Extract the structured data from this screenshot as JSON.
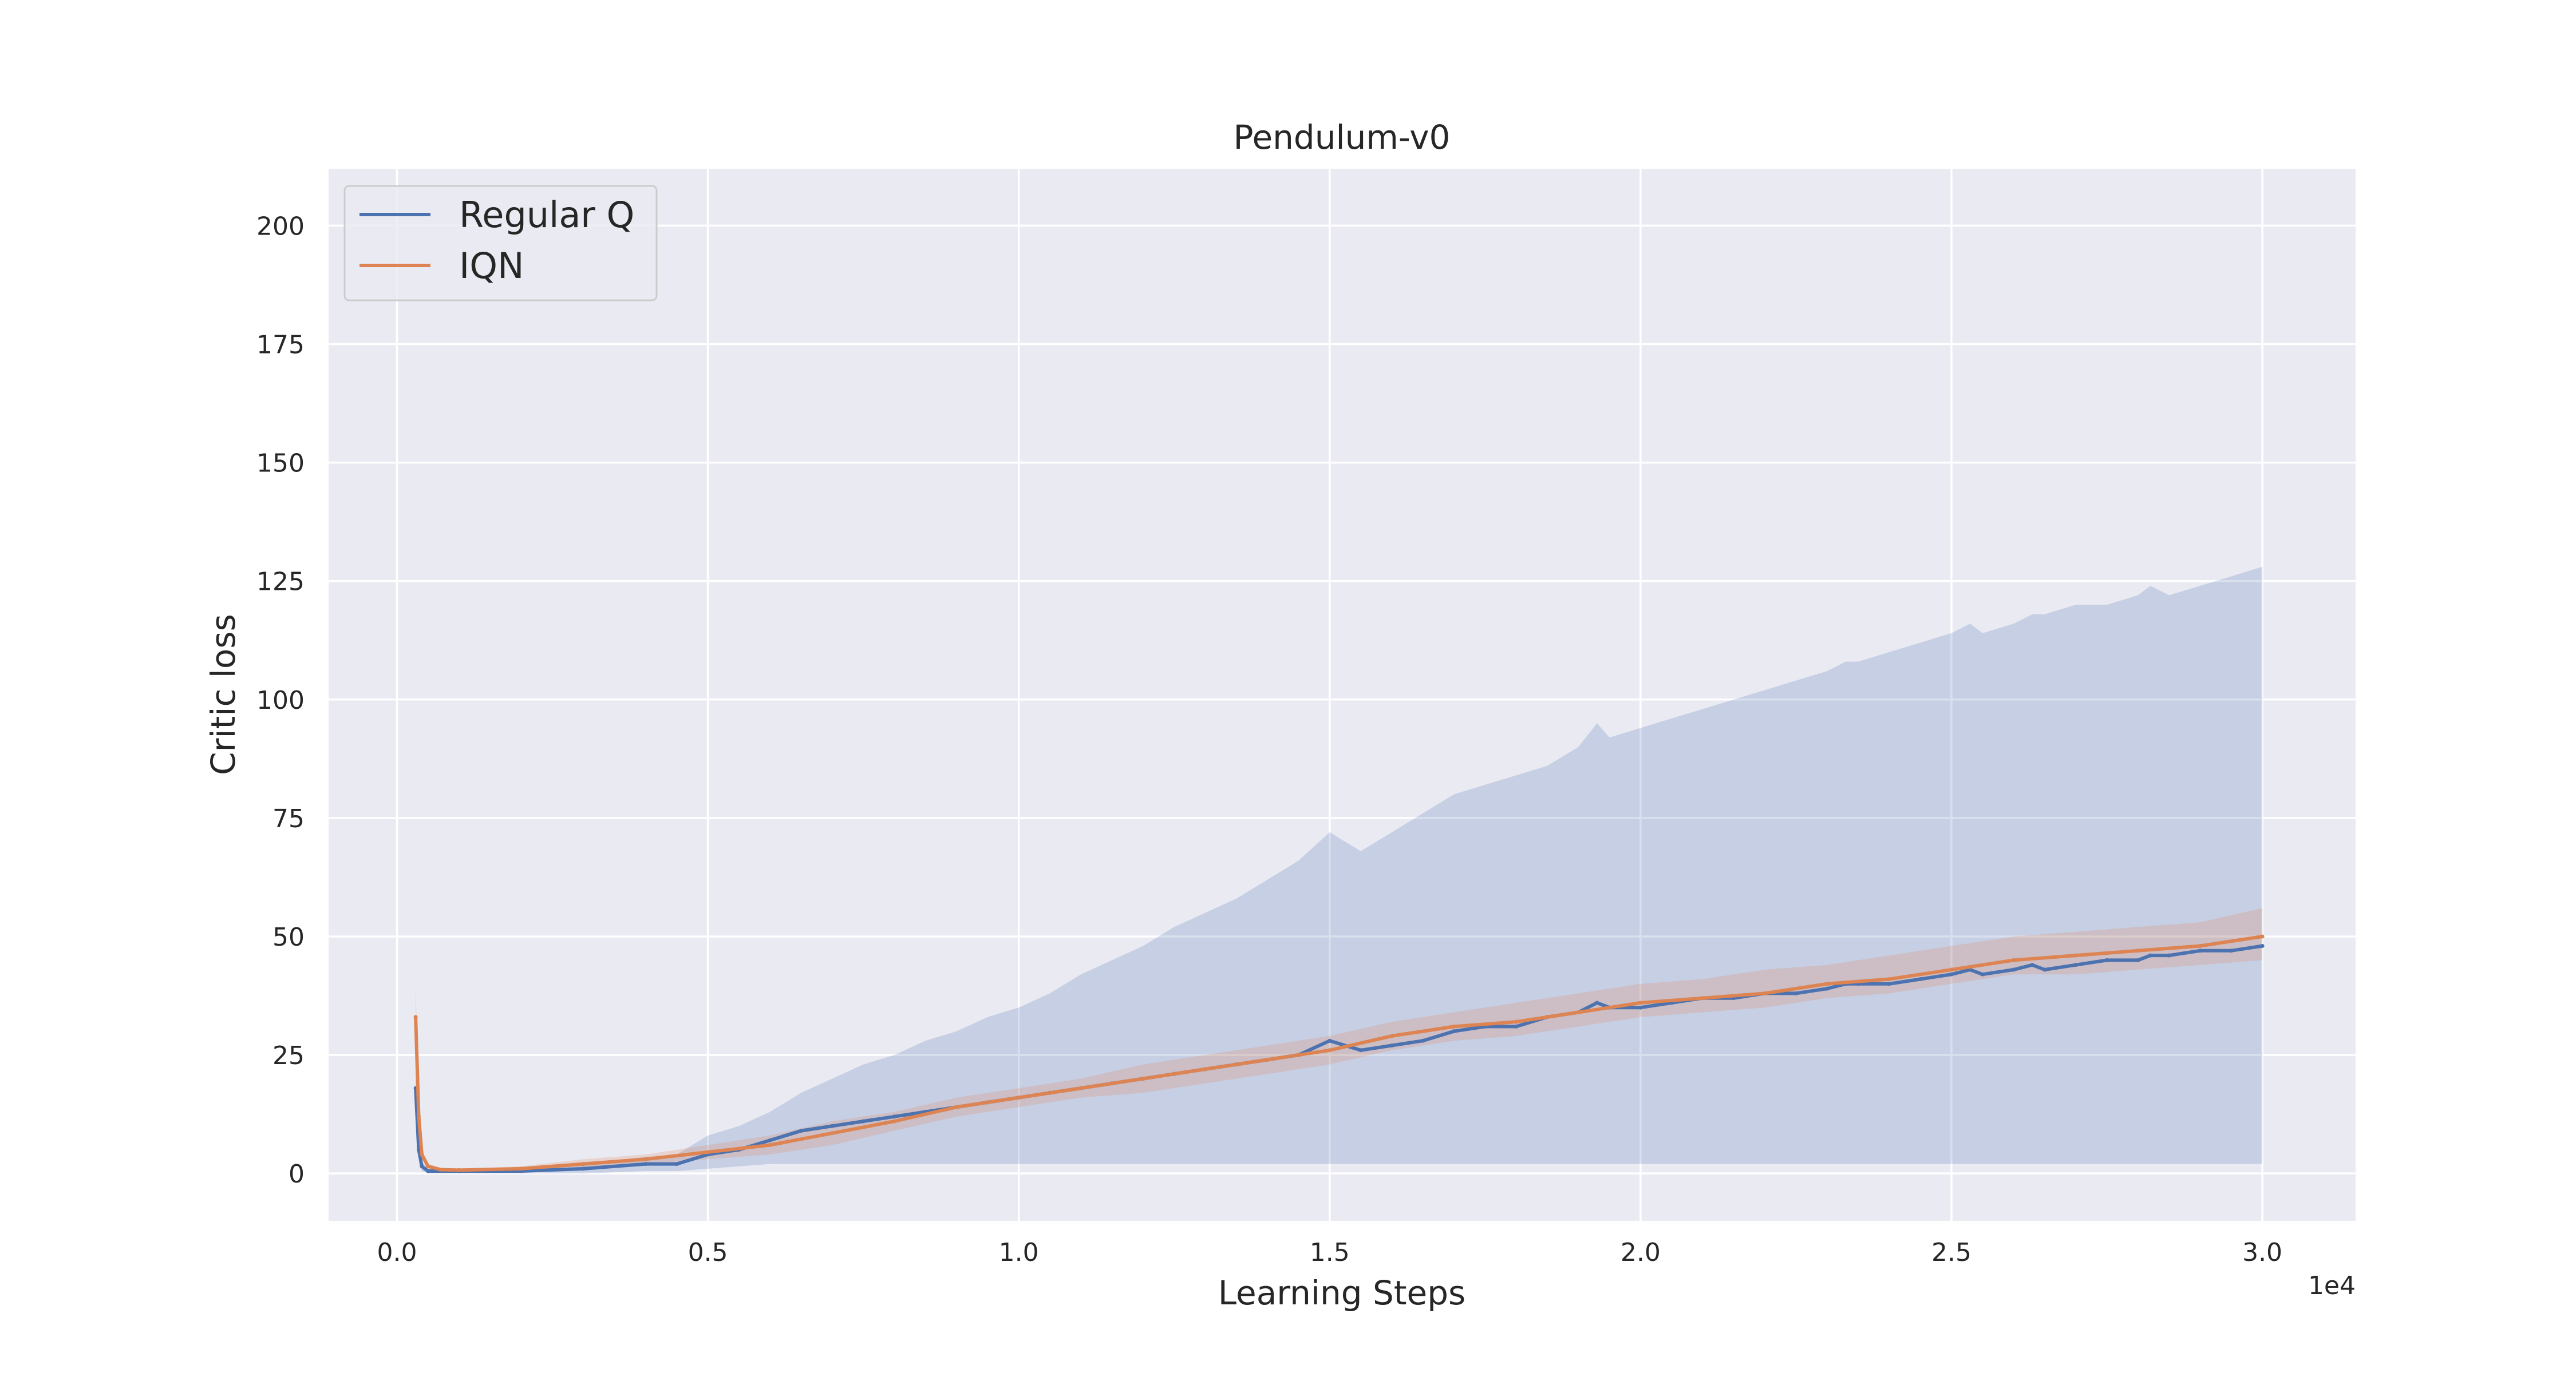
{
  "chart_data": {
    "type": "line",
    "title": "Pendulum-v0",
    "xlabel": "Learning Steps",
    "ylabel": "Critic loss",
    "x_offset_label": "1e4",
    "xlim": [
      -0.11,
      3.15
    ],
    "ylim": [
      -10,
      212
    ],
    "x_ticks": [
      0.0,
      0.5,
      1.0,
      1.5,
      2.0,
      2.5,
      3.0
    ],
    "x_tick_labels": [
      "0.0",
      "0.5",
      "1.0",
      "1.5",
      "2.0",
      "2.5",
      "3.0"
    ],
    "y_ticks": [
      0,
      25,
      50,
      75,
      100,
      125,
      150,
      175,
      200
    ],
    "y_tick_labels": [
      "0",
      "25",
      "50",
      "75",
      "100",
      "125",
      "150",
      "175",
      "200"
    ],
    "grid": true,
    "legend_position": "top-left",
    "background_color": "#eaeaf2",
    "series": [
      {
        "name": "Regular Q",
        "color": "#4c72b0",
        "x": [
          0.03,
          0.035,
          0.04,
          0.05,
          0.1,
          0.2,
          0.3,
          0.4,
          0.45,
          0.5,
          0.55,
          0.6,
          0.65,
          0.7,
          0.75,
          0.8,
          0.85,
          0.9,
          0.95,
          1.0,
          1.05,
          1.1,
          1.15,
          1.2,
          1.25,
          1.3,
          1.35,
          1.4,
          1.45,
          1.5,
          1.55,
          1.6,
          1.65,
          1.7,
          1.75,
          1.8,
          1.85,
          1.9,
          1.93,
          1.95,
          2.0,
          2.05,
          2.1,
          2.15,
          2.2,
          2.25,
          2.3,
          2.33,
          2.35,
          2.4,
          2.45,
          2.5,
          2.53,
          2.55,
          2.6,
          2.63,
          2.65,
          2.7,
          2.75,
          2.8,
          2.82,
          2.85,
          2.9,
          2.95,
          3.0
        ],
        "y": [
          18,
          5,
          1.5,
          0.5,
          0.5,
          0.5,
          1,
          2,
          2,
          4,
          5,
          7,
          9,
          10,
          11,
          12,
          13,
          14,
          15,
          16,
          17,
          18,
          19,
          20,
          21,
          22,
          23,
          24,
          25,
          28,
          26,
          27,
          28,
          30,
          31,
          31,
          33,
          34,
          36,
          35,
          35,
          36,
          37,
          37,
          38,
          38,
          39,
          40,
          40,
          40,
          41,
          42,
          43,
          42,
          43,
          44,
          43,
          44,
          45,
          45,
          46,
          46,
          47,
          47,
          48
        ],
        "band_high": [
          20,
          7,
          2.5,
          1,
          1,
          1,
          2,
          3.5,
          4,
          8,
          10,
          13,
          17,
          20,
          23,
          25,
          28,
          30,
          33,
          35,
          38,
          42,
          45,
          48,
          52,
          55,
          58,
          62,
          66,
          72,
          68,
          72,
          76,
          80,
          82,
          84,
          86,
          90,
          95,
          92,
          94,
          96,
          98,
          100,
          102,
          104,
          106,
          108,
          108,
          110,
          112,
          114,
          116,
          114,
          116,
          118,
          118,
          120,
          120,
          122,
          124,
          122,
          124,
          126,
          128
        ],
        "band_low": [
          16,
          3,
          0.5,
          0,
          0,
          0,
          0,
          0.5,
          0.5,
          1,
          1.5,
          2,
          2,
          2,
          2,
          2,
          2,
          2,
          2,
          2,
          2,
          2,
          2,
          2,
          2,
          2,
          2,
          2,
          2,
          2,
          2,
          2,
          2,
          2,
          2,
          2,
          2,
          2,
          2,
          2,
          2,
          2,
          2,
          2,
          2,
          2,
          2,
          2,
          2,
          2,
          2,
          2,
          2,
          2,
          2,
          2,
          2,
          2,
          2,
          2,
          2,
          2,
          2,
          2,
          2
        ]
      },
      {
        "name": "IQN",
        "color": "#dd8452",
        "x": [
          0.03,
          0.035,
          0.04,
          0.05,
          0.07,
          0.1,
          0.2,
          0.3,
          0.4,
          0.5,
          0.6,
          0.7,
          0.8,
          0.9,
          1.0,
          1.1,
          1.2,
          1.3,
          1.4,
          1.5,
          1.6,
          1.7,
          1.8,
          1.9,
          2.0,
          2.1,
          2.2,
          2.3,
          2.4,
          2.5,
          2.6,
          2.7,
          2.8,
          2.9,
          3.0
        ],
        "y": [
          33,
          12,
          4,
          1.5,
          0.8,
          0.7,
          1,
          2,
          3,
          4.5,
          6,
          8.5,
          11,
          14,
          16,
          18,
          20,
          22,
          24,
          26,
          29,
          31,
          32,
          34,
          36,
          37,
          38,
          40,
          41,
          43,
          45,
          46,
          47,
          48,
          50
        ],
        "band_high": [
          40,
          15,
          5,
          2,
          1.2,
          1,
          1.5,
          3,
          4,
          6,
          8,
          11,
          13,
          16,
          18,
          20,
          23,
          25,
          27,
          29,
          32,
          34,
          36,
          38,
          40,
          41,
          43,
          44,
          46,
          48,
          50,
          51,
          52,
          53,
          56
        ],
        "band_low": [
          28,
          10,
          3,
          1,
          0.5,
          0.5,
          0.5,
          1,
          2,
          3,
          4,
          6,
          9,
          12,
          14,
          16,
          17,
          19,
          21,
          23,
          26,
          28,
          29,
          31,
          33,
          34,
          35,
          37,
          38,
          40,
          42,
          42,
          43,
          44,
          45
        ]
      }
    ]
  }
}
